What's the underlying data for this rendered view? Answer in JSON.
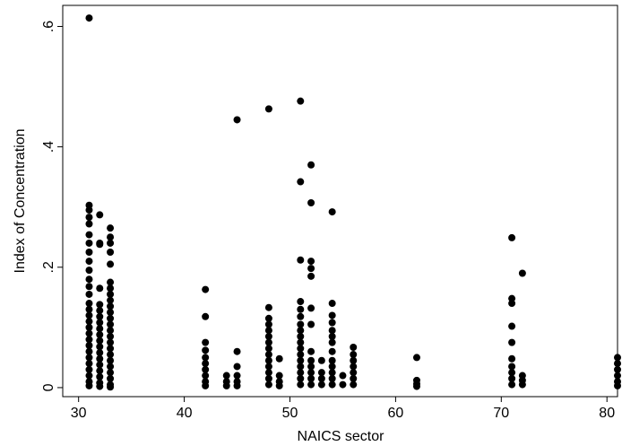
{
  "chart_data": {
    "type": "scatter",
    "title": "",
    "xlabel": "NAICS sector",
    "ylabel": "Index of Concentration",
    "xlim": [
      28.5,
      81
    ],
    "ylim": [
      -0.015,
      0.635
    ],
    "xticks": [
      30,
      40,
      50,
      60,
      70,
      80
    ],
    "xtick_labels": [
      "30",
      "40",
      "50",
      "60",
      "70",
      "80"
    ],
    "yticks": [
      0,
      0.2,
      0.4,
      0.6
    ],
    "ytick_labels": [
      "0",
      ".2",
      ".4",
      ".6"
    ],
    "grid": false,
    "legend": "none",
    "marker_color": "#000000",
    "series": [
      {
        "points": [
          [
            31,
            0.614
          ],
          [
            31,
            0.303
          ],
          [
            31,
            0.295
          ],
          [
            31,
            0.283
          ],
          [
            31,
            0.272
          ],
          [
            31,
            0.254
          ],
          [
            31,
            0.24
          ],
          [
            31,
            0.225
          ],
          [
            31,
            0.21
          ],
          [
            31,
            0.195
          ],
          [
            31,
            0.18
          ],
          [
            31,
            0.168
          ],
          [
            31,
            0.155
          ],
          [
            31,
            0.14
          ],
          [
            31,
            0.13
          ],
          [
            31,
            0.12
          ],
          [
            31,
            0.11
          ],
          [
            31,
            0.1
          ],
          [
            31,
            0.09
          ],
          [
            31,
            0.08
          ],
          [
            31,
            0.07
          ],
          [
            31,
            0.06
          ],
          [
            31,
            0.05
          ],
          [
            31,
            0.04
          ],
          [
            31,
            0.03
          ],
          [
            31,
            0.02
          ],
          [
            31,
            0.01
          ],
          [
            31,
            0.003
          ],
          [
            32,
            0.287
          ],
          [
            32,
            0.24
          ],
          [
            32,
            0.238
          ],
          [
            32,
            0.165
          ],
          [
            32,
            0.138
          ],
          [
            32,
            0.128
          ],
          [
            32,
            0.118
          ],
          [
            32,
            0.108
          ],
          [
            32,
            0.098
          ],
          [
            32,
            0.088
          ],
          [
            32,
            0.078
          ],
          [
            32,
            0.068
          ],
          [
            32,
            0.058
          ],
          [
            32,
            0.048
          ],
          [
            32,
            0.038
          ],
          [
            32,
            0.028
          ],
          [
            32,
            0.018
          ],
          [
            32,
            0.008
          ],
          [
            32,
            0.002
          ],
          [
            33,
            0.265
          ],
          [
            33,
            0.25
          ],
          [
            33,
            0.24
          ],
          [
            33,
            0.225
          ],
          [
            33,
            0.205
          ],
          [
            33,
            0.175
          ],
          [
            33,
            0.165
          ],
          [
            33,
            0.155
          ],
          [
            33,
            0.145
          ],
          [
            33,
            0.135
          ],
          [
            33,
            0.125
          ],
          [
            33,
            0.115
          ],
          [
            33,
            0.105
          ],
          [
            33,
            0.095
          ],
          [
            33,
            0.085
          ],
          [
            33,
            0.075
          ],
          [
            33,
            0.065
          ],
          [
            33,
            0.055
          ],
          [
            33,
            0.045
          ],
          [
            33,
            0.035
          ],
          [
            33,
            0.025
          ],
          [
            33,
            0.015
          ],
          [
            33,
            0.005
          ],
          [
            33,
            0.001
          ],
          [
            42,
            0.163
          ],
          [
            42,
            0.118
          ],
          [
            42,
            0.075
          ],
          [
            42,
            0.062
          ],
          [
            42,
            0.05
          ],
          [
            42,
            0.04
          ],
          [
            42,
            0.03
          ],
          [
            42,
            0.02
          ],
          [
            42,
            0.01
          ],
          [
            42,
            0.003
          ],
          [
            44,
            0.02
          ],
          [
            44,
            0.01
          ],
          [
            44,
            0.003
          ],
          [
            45,
            0.445
          ],
          [
            45,
            0.06
          ],
          [
            45,
            0.035
          ],
          [
            45,
            0.02
          ],
          [
            45,
            0.01
          ],
          [
            45,
            0.003
          ],
          [
            48,
            0.463
          ],
          [
            48,
            0.133
          ],
          [
            48,
            0.115
          ],
          [
            48,
            0.105
          ],
          [
            48,
            0.095
          ],
          [
            48,
            0.085
          ],
          [
            48,
            0.075
          ],
          [
            48,
            0.065
          ],
          [
            48,
            0.055
          ],
          [
            48,
            0.045
          ],
          [
            48,
            0.035
          ],
          [
            48,
            0.025
          ],
          [
            48,
            0.015
          ],
          [
            48,
            0.005
          ],
          [
            49,
            0.048
          ],
          [
            49,
            0.02
          ],
          [
            49,
            0.01
          ],
          [
            49,
            0.003
          ],
          [
            51,
            0.476
          ],
          [
            51,
            0.342
          ],
          [
            51,
            0.212
          ],
          [
            51,
            0.143
          ],
          [
            51,
            0.13
          ],
          [
            51,
            0.118
          ],
          [
            51,
            0.105
          ],
          [
            51,
            0.095
          ],
          [
            51,
            0.085
          ],
          [
            51,
            0.075
          ],
          [
            51,
            0.065
          ],
          [
            51,
            0.055
          ],
          [
            51,
            0.045
          ],
          [
            51,
            0.035
          ],
          [
            51,
            0.025
          ],
          [
            51,
            0.015
          ],
          [
            51,
            0.005
          ],
          [
            52,
            0.37
          ],
          [
            52,
            0.307
          ],
          [
            52,
            0.21
          ],
          [
            52,
            0.198
          ],
          [
            52,
            0.185
          ],
          [
            52,
            0.132
          ],
          [
            52,
            0.105
          ],
          [
            52,
            0.06
          ],
          [
            52,
            0.045
          ],
          [
            52,
            0.035
          ],
          [
            52,
            0.025
          ],
          [
            52,
            0.015
          ],
          [
            52,
            0.005
          ],
          [
            53,
            0.045
          ],
          [
            53,
            0.025
          ],
          [
            53,
            0.015
          ],
          [
            53,
            0.005
          ],
          [
            54,
            0.292
          ],
          [
            54,
            0.14
          ],
          [
            54,
            0.12
          ],
          [
            54,
            0.108
          ],
          [
            54,
            0.095
          ],
          [
            54,
            0.085
          ],
          [
            54,
            0.075
          ],
          [
            54,
            0.06
          ],
          [
            54,
            0.045
          ],
          [
            54,
            0.035
          ],
          [
            54,
            0.025
          ],
          [
            54,
            0.015
          ],
          [
            54,
            0.005
          ],
          [
            55,
            0.02
          ],
          [
            55,
            0.005
          ],
          [
            56,
            0.067
          ],
          [
            56,
            0.055
          ],
          [
            56,
            0.045
          ],
          [
            56,
            0.035
          ],
          [
            56,
            0.025
          ],
          [
            56,
            0.015
          ],
          [
            56,
            0.005
          ],
          [
            62,
            0.05
          ],
          [
            62,
            0.012
          ],
          [
            62,
            0.006
          ],
          [
            62,
            0.002
          ],
          [
            71,
            0.249
          ],
          [
            71,
            0.148
          ],
          [
            71,
            0.14
          ],
          [
            71,
            0.102
          ],
          [
            71,
            0.075
          ],
          [
            71,
            0.048
          ],
          [
            71,
            0.035
          ],
          [
            71,
            0.025
          ],
          [
            71,
            0.015
          ],
          [
            71,
            0.005
          ],
          [
            72,
            0.19
          ],
          [
            72,
            0.02
          ],
          [
            72,
            0.012
          ],
          [
            72,
            0.005
          ],
          [
            81,
            0.05
          ],
          [
            81,
            0.04
          ],
          [
            81,
            0.03
          ],
          [
            81,
            0.02
          ],
          [
            81,
            0.01
          ],
          [
            81,
            0.003
          ]
        ]
      }
    ]
  }
}
